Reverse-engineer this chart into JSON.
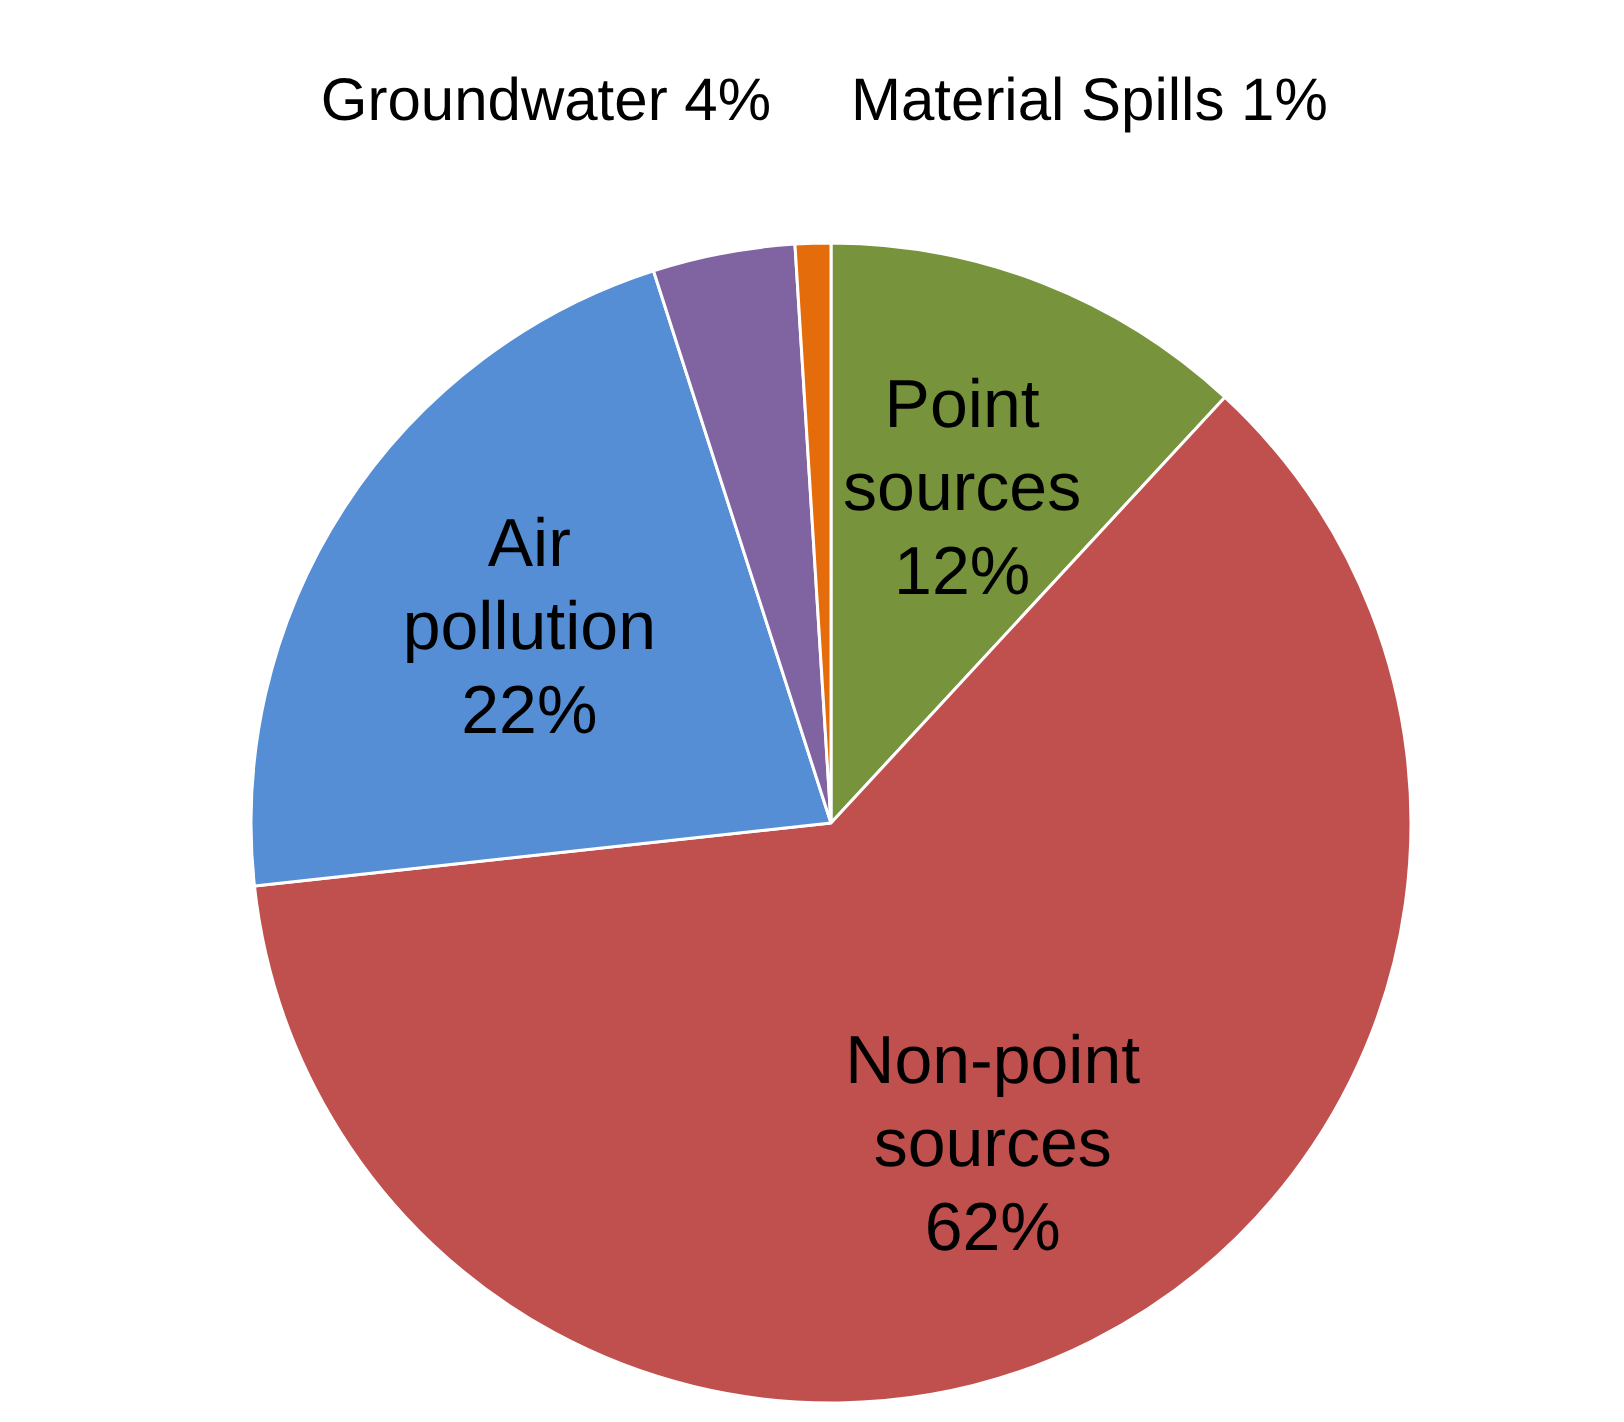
{
  "chart_data": {
    "type": "pie",
    "categories": [
      "Point sources",
      "Non-point sources",
      "Air pollution",
      "Groundwater",
      "Material Spills"
    ],
    "values": [
      12,
      62,
      22,
      4,
      1
    ],
    "value_labels": [
      "12%",
      "62%",
      "22%",
      "4%",
      "1%"
    ],
    "colors": [
      "#77933c",
      "#c0504d",
      "#558ed5",
      "#8064a2",
      "#e46c0a"
    ]
  }
}
